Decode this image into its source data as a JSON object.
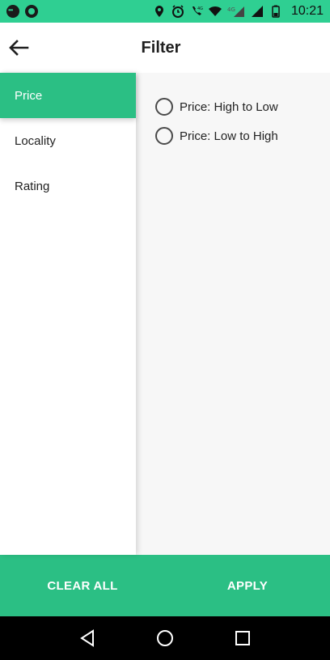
{
  "status_bar": {
    "time": "10:21",
    "icons": [
      "message-icon",
      "ring-icon",
      "location-icon",
      "alarm-icon",
      "wifi-call-icon",
      "wifi-icon",
      "signal-icon",
      "battery-icon"
    ],
    "color": "#2fcf92"
  },
  "header": {
    "title": "Filter",
    "back_icon": "arrow-left-icon"
  },
  "categories": [
    {
      "label": "Price",
      "active": true
    },
    {
      "label": "Locality",
      "active": false
    },
    {
      "label": "Rating",
      "active": false
    }
  ],
  "options": [
    {
      "label": "Price: High to Low",
      "selected": false
    },
    {
      "label": "Price: Low to High",
      "selected": false
    }
  ],
  "footer": {
    "clear_label": "CLEAR ALL",
    "apply_label": "APPLY"
  },
  "nav": {
    "back_icon": "triangle-back-icon",
    "home_icon": "circle-home-icon",
    "recents_icon": "square-recents-icon"
  },
  "colors": {
    "accent": "#2bbf84",
    "status": "#2fcf92",
    "panel_bg": "#f7f7f7"
  }
}
